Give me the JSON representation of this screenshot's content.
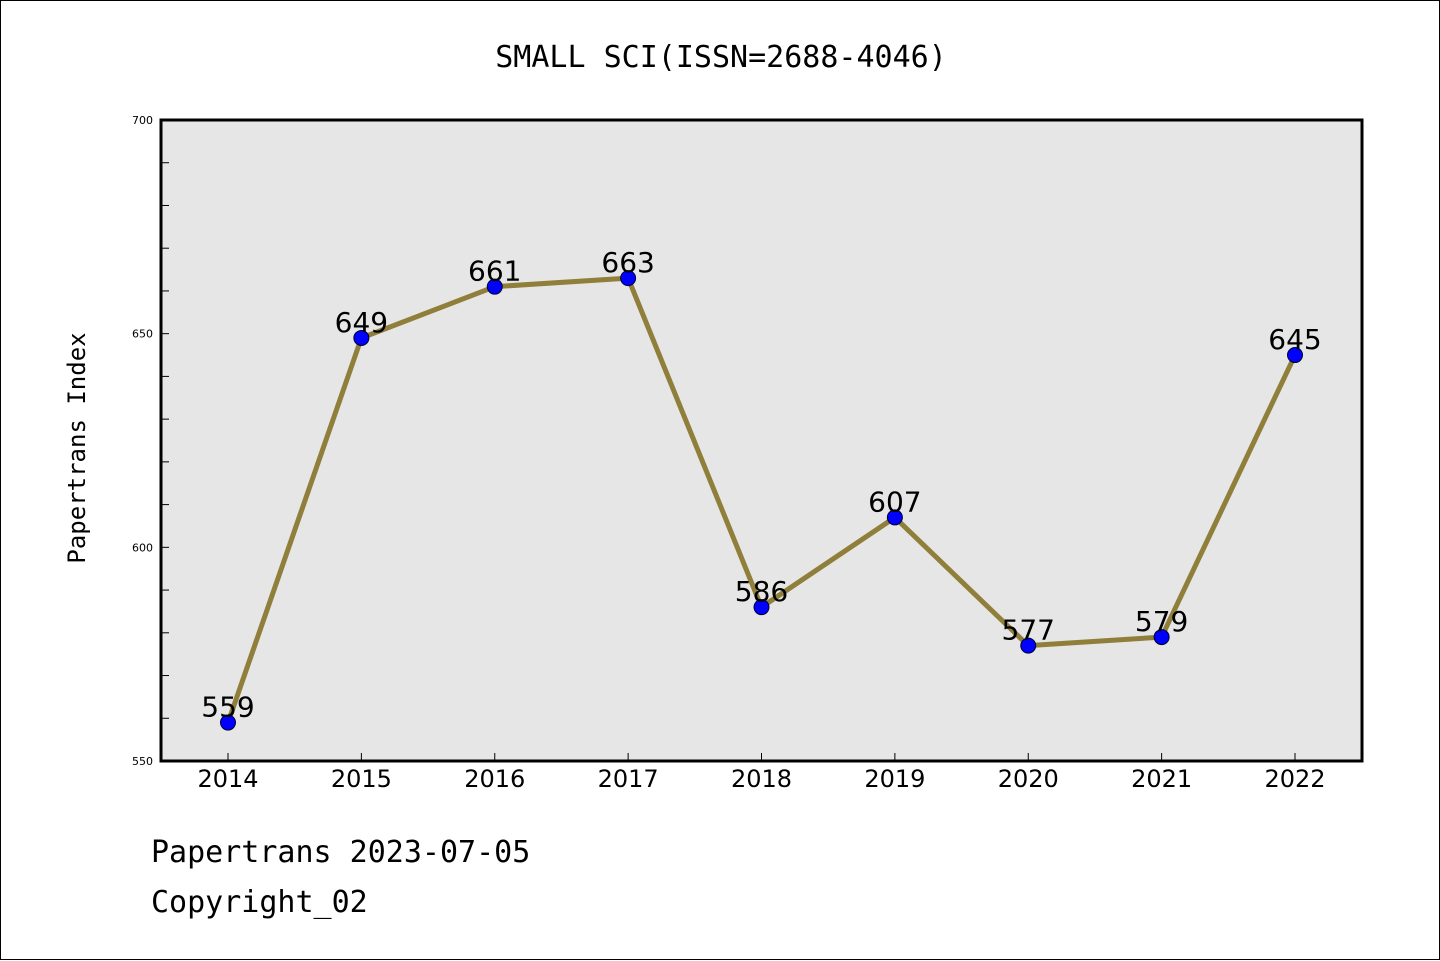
{
  "chart_data": {
    "type": "line",
    "title": "SMALL SCI(ISSN=2688-4046)",
    "xlabel": "",
    "ylabel": "Papertrans Index",
    "categories": [
      "2014",
      "2015",
      "2016",
      "2017",
      "2018",
      "2019",
      "2020",
      "2021",
      "2022"
    ],
    "series": [
      {
        "values": [
          559,
          649,
          661,
          663,
          586,
          607,
          577,
          579,
          645
        ]
      }
    ],
    "ylim": [
      550,
      700
    ],
    "yticks": [
      550,
      600,
      650,
      700
    ],
    "grid": false,
    "data_labels": true,
    "colors": {
      "line": "#8f7f3a",
      "marker": "#0000ff",
      "plot_background": "#e6e6e6"
    }
  },
  "footer": {
    "line1": "Papertrans 2023-07-05",
    "line2": "Copyright_02"
  }
}
